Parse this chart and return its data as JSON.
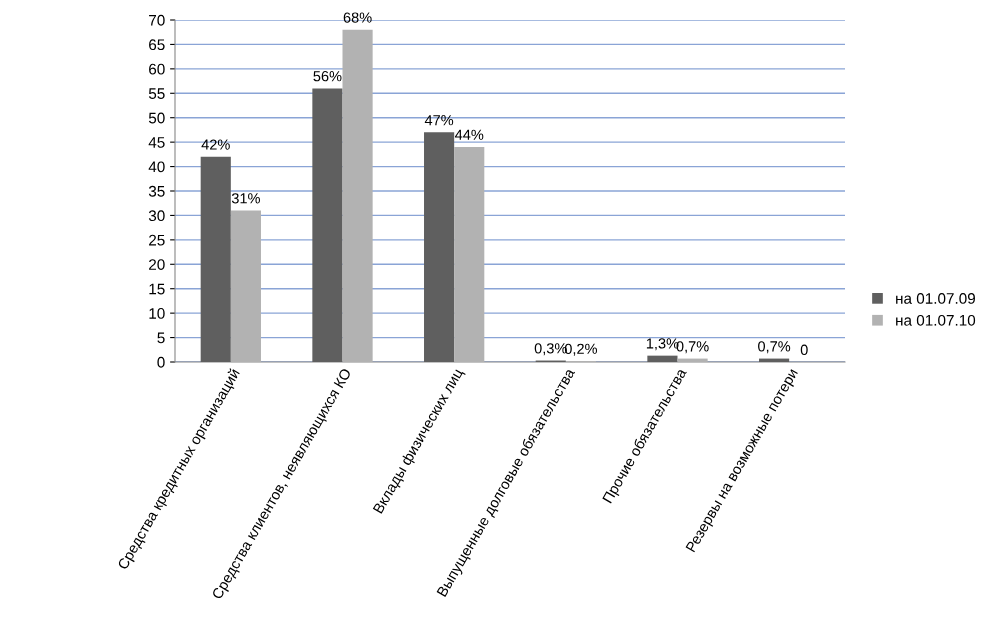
{
  "chart_data": {
    "type": "bar",
    "categories": [
      "Средства кредитных организаций",
      "Средства клиентов, неявляющихся КО",
      "Вклады физических лиц",
      "Выпущенные долговые обязательства",
      "Прочие обязательства",
      "Резервы на возможные потери"
    ],
    "series": [
      {
        "name": "на 01.07.09",
        "color": "#5f5f5f",
        "values": [
          42,
          56,
          47,
          0.3,
          1.3,
          0.7
        ],
        "value_labels": [
          "42%",
          "56%",
          "47%",
          "0,3%",
          "1,3%",
          "0,7%"
        ]
      },
      {
        "name": "на 01.07.10",
        "color": "#b2b2b2",
        "values": [
          31,
          68,
          44,
          0.2,
          0.7,
          0
        ],
        "value_labels": [
          "31%",
          "68%",
          "44%",
          "0,2%",
          "0,7%",
          "0"
        ]
      }
    ],
    "ylim": [
      0,
      70
    ],
    "yticks": [
      0,
      5,
      10,
      15,
      20,
      25,
      30,
      35,
      40,
      45,
      50,
      55,
      60,
      65,
      70
    ],
    "grid": "y",
    "legend": "right"
  }
}
